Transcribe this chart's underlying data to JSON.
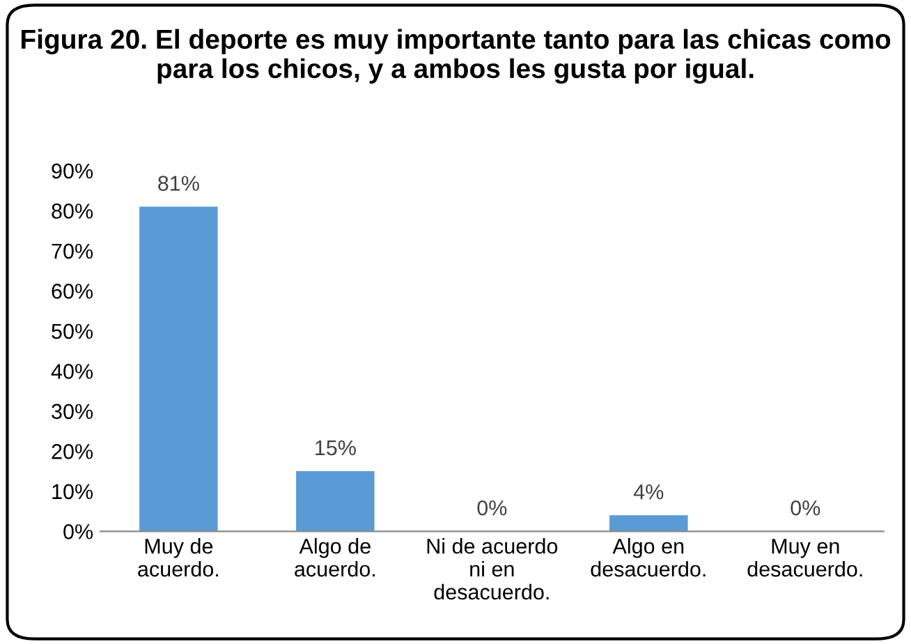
{
  "chart_data": {
    "type": "bar",
    "title": "Figura 20. El deporte es muy importante tanto para las chicas como para los chicos, y a ambos les gusta por igual.",
    "categories": [
      "Muy de acuerdo.",
      "Algo de acuerdo.",
      "Ni de acuerdo ni en desacuerdo.",
      "Algo en desacuerdo.",
      "Muy en desacuerdo."
    ],
    "values": [
      81,
      15,
      0,
      4,
      0
    ],
    "value_labels": [
      "81%",
      "15%",
      "0%",
      "4%",
      "0%"
    ],
    "color": "#5b9bd5",
    "ylim": [
      0,
      90
    ],
    "yticks": [
      {
        "value": 0,
        "label": "0%"
      },
      {
        "value": 10,
        "label": "10%"
      },
      {
        "value": 20,
        "label": "20%"
      },
      {
        "value": 30,
        "label": "30%"
      },
      {
        "value": 40,
        "label": "40%"
      },
      {
        "value": 50,
        "label": "50%"
      },
      {
        "value": 60,
        "label": "60%"
      },
      {
        "value": 70,
        "label": "70%"
      },
      {
        "value": 80,
        "label": "80%"
      },
      {
        "value": 90,
        "label": "90%"
      }
    ],
    "grid": false,
    "legend": false
  }
}
